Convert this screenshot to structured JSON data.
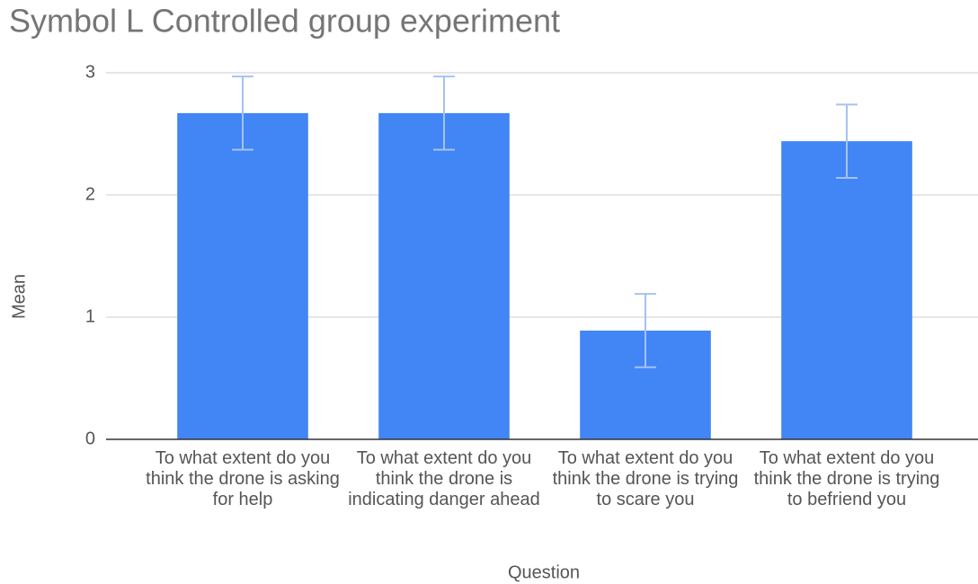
{
  "chart_data": {
    "type": "bar",
    "title": "Symbol L Controlled group experiment",
    "x_label": "Question",
    "y_label": "Mean",
    "categories": [
      "To what extent do you think the drone is asking for help",
      "To what extent do you think the drone is indicating danger ahead",
      "To what extent do you think the drone is trying to scare you",
      "To what extent do you think the drone is trying to befriend you"
    ],
    "values": [
      2.67,
      2.67,
      0.89,
      2.44
    ],
    "errors": [
      0.3,
      0.3,
      0.3,
      0.3
    ],
    "color": "#4285f4",
    "error_color": "#a4c2f4",
    "ylim": [
      0,
      3
    ],
    "yticks": [
      0,
      1,
      2,
      3
    ],
    "grid": true
  }
}
